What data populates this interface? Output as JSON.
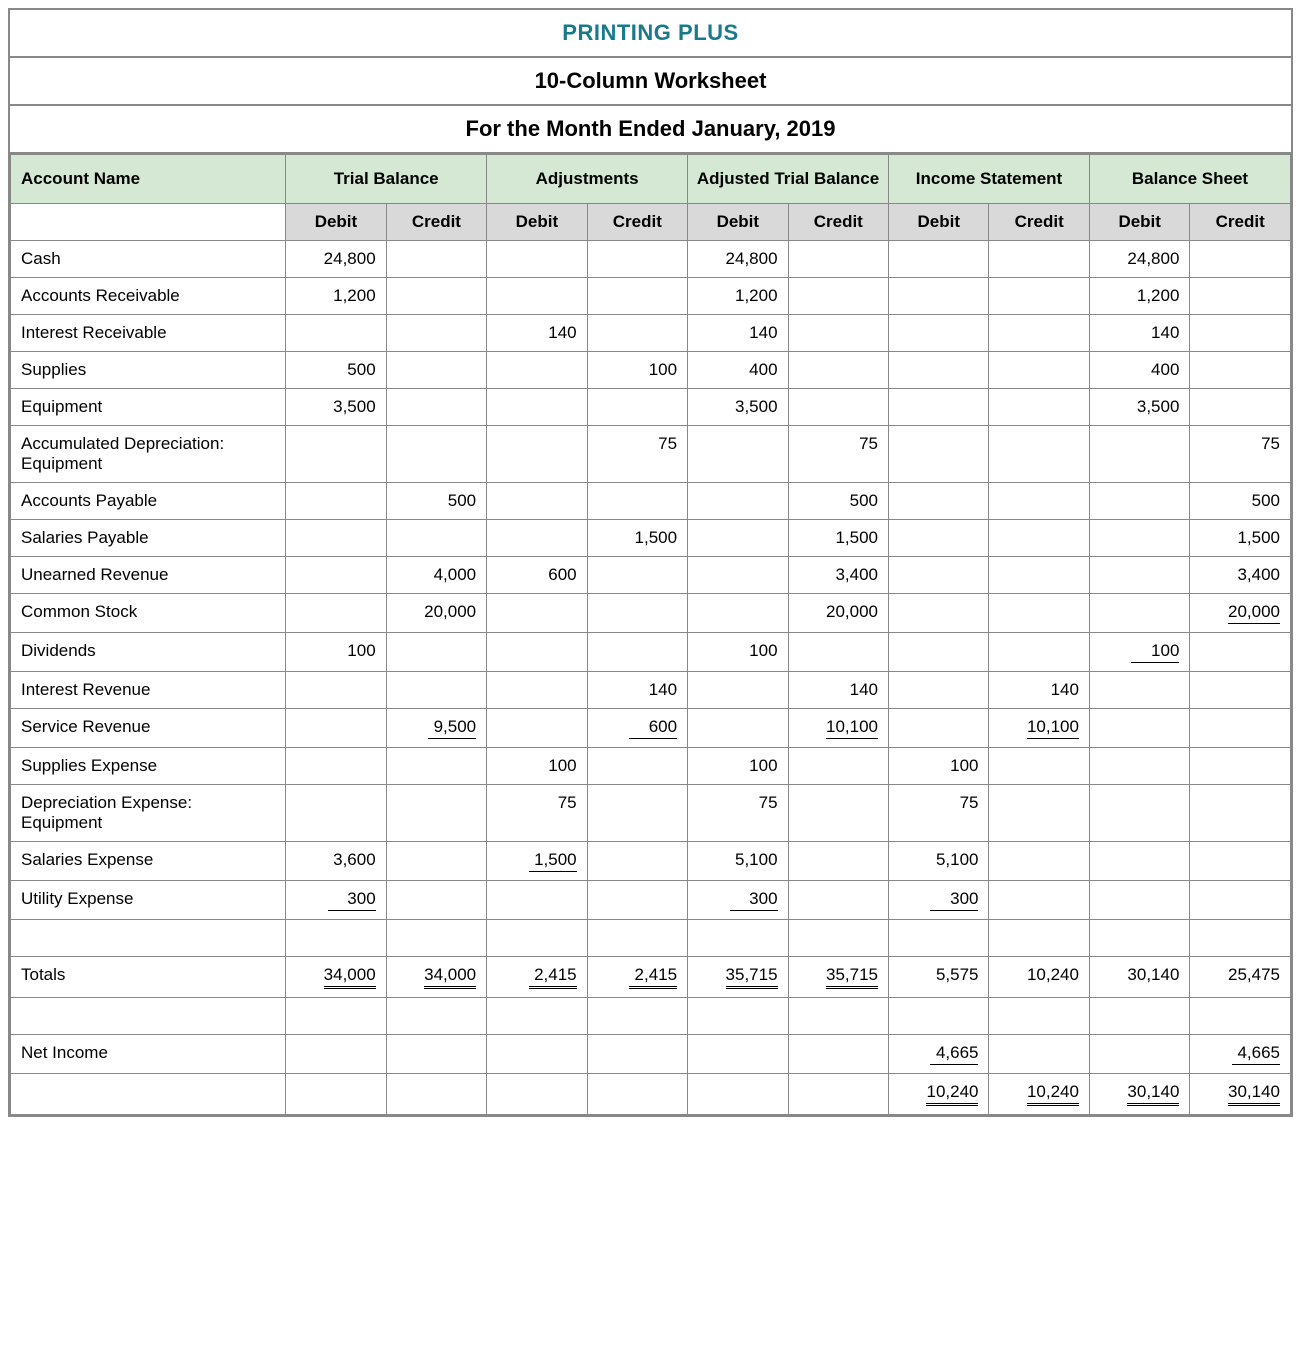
{
  "header": {
    "company": "PRINTING PLUS",
    "title": "10-Column Worksheet",
    "period": "For the Month Ended January, 2019"
  },
  "colors": {
    "company_text": "#1a7a8c",
    "section_bg": "#d5e8d4",
    "sub_bg": "#d9d9d9",
    "border": "#888888",
    "text": "#000000"
  },
  "columns": {
    "account_label": "Account Name",
    "sections": [
      {
        "label": "Trial Balance"
      },
      {
        "label": "Adjustments"
      },
      {
        "label": "Adjusted Trial Balance"
      },
      {
        "label": "Income Statement"
      },
      {
        "label": "Balance Sheet"
      }
    ],
    "debit_label": "Debit",
    "credit_label": "Credit"
  },
  "rows": [
    {
      "name": "Cash",
      "cells": [
        "24,800",
        "",
        "",
        "",
        "24,800",
        "",
        "",
        "",
        "24,800",
        ""
      ]
    },
    {
      "name": "Accounts Receivable",
      "cells": [
        "1,200",
        "",
        "",
        "",
        "1,200",
        "",
        "",
        "",
        "1,200",
        ""
      ]
    },
    {
      "name": "Interest Receivable",
      "cells": [
        "",
        "",
        "140",
        "",
        "140",
        "",
        "",
        "",
        "140",
        ""
      ]
    },
    {
      "name": "Supplies",
      "cells": [
        "500",
        "",
        "",
        "100",
        "400",
        "",
        "",
        "",
        "400",
        ""
      ]
    },
    {
      "name": "Equipment",
      "cells": [
        "3,500",
        "",
        "",
        "",
        "3,500",
        "",
        "",
        "",
        "3,500",
        ""
      ]
    },
    {
      "name": "Accumulated Depreciation: Equipment",
      "cells": [
        "",
        "",
        "",
        "75",
        "",
        "75",
        "",
        "",
        "",
        "75"
      ]
    },
    {
      "name": "Accounts Payable",
      "cells": [
        "",
        "500",
        "",
        "",
        "",
        "500",
        "",
        "",
        "",
        "500"
      ]
    },
    {
      "name": "Salaries Payable",
      "cells": [
        "",
        "",
        "",
        "1,500",
        "",
        "1,500",
        "",
        "",
        "",
        "1,500"
      ]
    },
    {
      "name": "Unearned Revenue",
      "cells": [
        "",
        "4,000",
        "600",
        "",
        "",
        "3,400",
        "",
        "",
        "",
        "3,400"
      ]
    },
    {
      "name": "Common Stock",
      "cells": [
        "",
        "20,000",
        "",
        "",
        "",
        "20,000",
        "",
        "",
        "",
        "20,000"
      ],
      "underline": [
        9
      ]
    },
    {
      "name": "Dividends",
      "cells": [
        "100",
        "",
        "",
        "",
        "100",
        "",
        "",
        "",
        "100",
        ""
      ],
      "underline": [
        8
      ]
    },
    {
      "name": "Interest Revenue",
      "cells": [
        "",
        "",
        "",
        "140",
        "",
        "140",
        "",
        "140",
        "",
        ""
      ]
    },
    {
      "name": "Service Revenue",
      "cells": [
        "",
        "9,500",
        "",
        "600",
        "",
        "10,100",
        "",
        "10,100",
        "",
        ""
      ],
      "underline": [
        1,
        3,
        5,
        7
      ]
    },
    {
      "name": "Supplies Expense",
      "cells": [
        "",
        "",
        "100",
        "",
        "100",
        "",
        "100",
        "",
        "",
        ""
      ]
    },
    {
      "name": "Depreciation Expense: Equipment",
      "cells": [
        "",
        "",
        "75",
        "",
        "75",
        "",
        "75",
        "",
        "",
        ""
      ]
    },
    {
      "name": "Salaries Expense",
      "cells": [
        "3,600",
        "",
        "1,500",
        "",
        "5,100",
        "",
        "5,100",
        "",
        "",
        ""
      ],
      "underline": [
        2
      ]
    },
    {
      "name": "Utility Expense",
      "cells": [
        "300",
        "",
        "",
        "",
        "300",
        "",
        "300",
        "",
        "",
        ""
      ],
      "underline": [
        0,
        4,
        6
      ]
    },
    {
      "name": "",
      "cells": [
        "",
        "",
        "",
        "",
        "",
        "",
        "",
        "",
        "",
        ""
      ]
    },
    {
      "name": "Totals",
      "cells": [
        "34,000",
        "34,000",
        "2,415",
        "2,415",
        "35,715",
        "35,715",
        "5,575",
        "10,240",
        "30,140",
        "25,475"
      ],
      "double": [
        0,
        1,
        2,
        3,
        4,
        5
      ]
    },
    {
      "name": "",
      "cells": [
        "",
        "",
        "",
        "",
        "",
        "",
        "",
        "",
        "",
        ""
      ]
    },
    {
      "name": "Net Income",
      "cells": [
        "",
        "",
        "",
        "",
        "",
        "",
        "4,665",
        "",
        "",
        "4,665"
      ],
      "underline": [
        6,
        9
      ]
    },
    {
      "name": "",
      "cells": [
        "",
        "",
        "",
        "",
        "",
        "",
        "10,240",
        "10,240",
        "30,140",
        "30,140"
      ],
      "double": [
        6,
        7,
        8,
        9
      ]
    }
  ]
}
